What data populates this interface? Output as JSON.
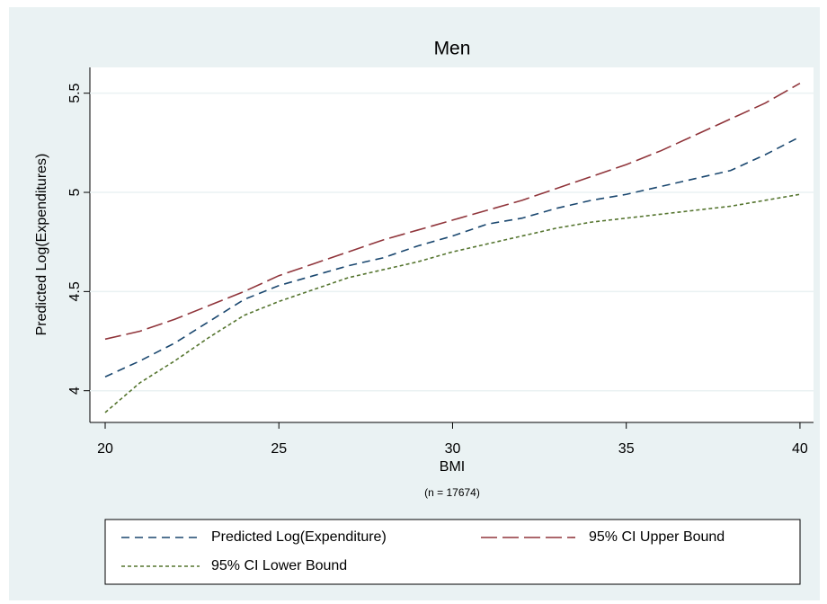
{
  "chart_data": {
    "type": "line",
    "title": "Men",
    "x_label": "BMI",
    "note": "(n = 17674)",
    "y_label": "Predicted Log(Expenditures)",
    "x": [
      20,
      21,
      22,
      23,
      24,
      25,
      26,
      27,
      28,
      29,
      30,
      31,
      32,
      33,
      34,
      35,
      36,
      37,
      38,
      39,
      40
    ],
    "series": [
      {
        "name": "Predicted Log(Expenditure)",
        "color": "#1a476f",
        "dash": "9 6",
        "values": [
          4.07,
          4.15,
          4.24,
          4.35,
          4.46,
          4.53,
          4.58,
          4.63,
          4.67,
          4.73,
          4.78,
          4.84,
          4.87,
          4.92,
          4.96,
          4.99,
          5.03,
          5.07,
          5.11,
          5.19,
          5.28
        ]
      },
      {
        "name": "95% CI Upper Bound",
        "color": "#90353b",
        "dash": "18 6",
        "values": [
          4.26,
          4.3,
          4.36,
          4.43,
          4.5,
          4.58,
          4.64,
          4.7,
          4.76,
          4.81,
          4.86,
          4.91,
          4.96,
          5.02,
          5.08,
          5.14,
          5.21,
          5.29,
          5.37,
          5.45,
          5.55
        ]
      },
      {
        "name": "95% CI Lower Bound",
        "color": "#55752f",
        "dash": "4 3",
        "values": [
          3.89,
          4.04,
          4.15,
          4.27,
          4.38,
          4.45,
          4.51,
          4.57,
          4.61,
          4.65,
          4.7,
          4.74,
          4.78,
          4.82,
          4.85,
          4.87,
          4.89,
          4.91,
          4.93,
          4.96,
          4.99
        ]
      }
    ],
    "xlim": [
      19.56,
      40.39
    ],
    "xticks": [
      20,
      25,
      30,
      35,
      40
    ],
    "ylim": [
      3.84,
      5.63
    ],
    "yticks": [
      4,
      4.5,
      5,
      5.5
    ],
    "grid": true,
    "legend": "bottom"
  }
}
